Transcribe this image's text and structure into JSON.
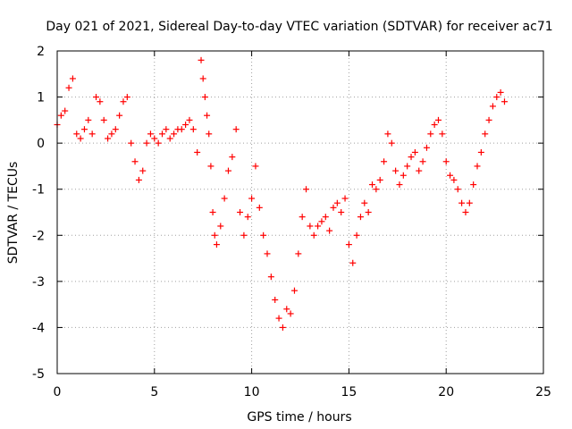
{
  "chart_data": {
    "type": "scatter",
    "title": "Day 021 of 2021, Sidereal Day-to-day VTEC variation (SDTVAR) for receiver ac71",
    "xlabel": "GPS time / hours",
    "ylabel": "SDTVAR / TECUs",
    "xlim": [
      0,
      25
    ],
    "ylim": [
      -5,
      2
    ],
    "xticks": [
      "0",
      "5",
      "10",
      "15",
      "20",
      "25"
    ],
    "yticks": [
      "2",
      "1",
      "0",
      "-1",
      "-2",
      "-3",
      "-4",
      "-5"
    ],
    "grid": true,
    "marker": "+",
    "series": [
      {
        "name": "SDTVAR",
        "color": "#ff0000",
        "points": [
          [
            0.0,
            0.4
          ],
          [
            0.2,
            0.6
          ],
          [
            0.4,
            0.7
          ],
          [
            0.6,
            1.2
          ],
          [
            0.8,
            1.4
          ],
          [
            1.0,
            0.2
          ],
          [
            1.2,
            0.1
          ],
          [
            1.4,
            0.3
          ],
          [
            1.6,
            0.5
          ],
          [
            1.8,
            0.2
          ],
          [
            2.0,
            1.0
          ],
          [
            2.2,
            0.9
          ],
          [
            2.4,
            0.5
          ],
          [
            2.6,
            0.1
          ],
          [
            2.8,
            0.2
          ],
          [
            3.0,
            0.3
          ],
          [
            3.2,
            0.6
          ],
          [
            3.4,
            0.9
          ],
          [
            3.6,
            1.0
          ],
          [
            3.8,
            0.0
          ],
          [
            4.0,
            -0.4
          ],
          [
            4.2,
            -0.8
          ],
          [
            4.4,
            -0.6
          ],
          [
            4.6,
            0.0
          ],
          [
            4.8,
            0.2
          ],
          [
            5.0,
            0.1
          ],
          [
            5.2,
            0.0
          ],
          [
            5.4,
            0.2
          ],
          [
            5.6,
            0.3
          ],
          [
            5.8,
            0.1
          ],
          [
            6.0,
            0.2
          ],
          [
            6.2,
            0.3
          ],
          [
            6.4,
            0.3
          ],
          [
            6.6,
            0.4
          ],
          [
            6.8,
            0.5
          ],
          [
            7.0,
            0.3
          ],
          [
            7.2,
            -0.2
          ],
          [
            7.4,
            1.8
          ],
          [
            7.5,
            1.4
          ],
          [
            7.6,
            1.0
          ],
          [
            7.7,
            0.6
          ],
          [
            7.8,
            0.2
          ],
          [
            7.9,
            -0.5
          ],
          [
            8.0,
            -1.5
          ],
          [
            8.1,
            -2.0
          ],
          [
            8.2,
            -2.2
          ],
          [
            8.4,
            -1.8
          ],
          [
            8.6,
            -1.2
          ],
          [
            8.8,
            -0.6
          ],
          [
            9.0,
            -0.3
          ],
          [
            9.2,
            0.3
          ],
          [
            9.4,
            -1.5
          ],
          [
            9.6,
            -2.0
          ],
          [
            9.8,
            -1.6
          ],
          [
            10.0,
            -1.2
          ],
          [
            10.2,
            -0.5
          ],
          [
            10.4,
            -1.4
          ],
          [
            10.6,
            -2.0
          ],
          [
            10.8,
            -2.4
          ],
          [
            11.0,
            -2.9
          ],
          [
            11.2,
            -3.4
          ],
          [
            11.4,
            -3.8
          ],
          [
            11.6,
            -4.0
          ],
          [
            11.8,
            -3.6
          ],
          [
            12.0,
            -3.7
          ],
          [
            12.2,
            -3.2
          ],
          [
            12.4,
            -2.4
          ],
          [
            12.6,
            -1.6
          ],
          [
            12.8,
            -1.0
          ],
          [
            13.0,
            -1.8
          ],
          [
            13.2,
            -2.0
          ],
          [
            13.4,
            -1.8
          ],
          [
            13.6,
            -1.7
          ],
          [
            13.8,
            -1.6
          ],
          [
            14.0,
            -1.9
          ],
          [
            14.2,
            -1.4
          ],
          [
            14.4,
            -1.3
          ],
          [
            14.6,
            -1.5
          ],
          [
            14.8,
            -1.2
          ],
          [
            15.0,
            -2.2
          ],
          [
            15.2,
            -2.6
          ],
          [
            15.4,
            -2.0
          ],
          [
            15.6,
            -1.6
          ],
          [
            15.8,
            -1.3
          ],
          [
            16.0,
            -1.5
          ],
          [
            16.2,
            -0.9
          ],
          [
            16.4,
            -1.0
          ],
          [
            16.6,
            -0.8
          ],
          [
            16.8,
            -0.4
          ],
          [
            17.0,
            0.2
          ],
          [
            17.2,
            0.0
          ],
          [
            17.4,
            -0.6
          ],
          [
            17.6,
            -0.9
          ],
          [
            17.8,
            -0.7
          ],
          [
            18.0,
            -0.5
          ],
          [
            18.2,
            -0.3
          ],
          [
            18.4,
            -0.2
          ],
          [
            18.6,
            -0.6
          ],
          [
            18.8,
            -0.4
          ],
          [
            19.0,
            -0.1
          ],
          [
            19.2,
            0.2
          ],
          [
            19.4,
            0.4
          ],
          [
            19.6,
            0.5
          ],
          [
            19.8,
            0.2
          ],
          [
            20.0,
            -0.4
          ],
          [
            20.2,
            -0.7
          ],
          [
            20.4,
            -0.8
          ],
          [
            20.6,
            -1.0
          ],
          [
            20.8,
            -1.3
          ],
          [
            21.0,
            -1.5
          ],
          [
            21.2,
            -1.3
          ],
          [
            21.4,
            -0.9
          ],
          [
            21.6,
            -0.5
          ],
          [
            21.8,
            -0.2
          ],
          [
            22.0,
            0.2
          ],
          [
            22.2,
            0.5
          ],
          [
            22.4,
            0.8
          ],
          [
            22.6,
            1.0
          ],
          [
            22.8,
            1.1
          ],
          [
            23.0,
            0.9
          ]
        ]
      }
    ]
  }
}
